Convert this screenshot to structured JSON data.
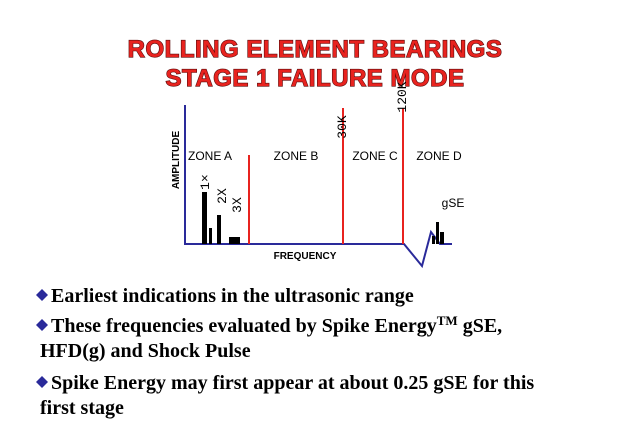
{
  "header": {
    "title_lines": [
      "ROLLING ELEMENT BEARINGS",
      "STAGE 1 FAILURE MODE"
    ]
  },
  "diagram": {
    "y_axis_label": "AMPLITUDE",
    "x_axis_label": "FREQUENCY",
    "zones": [
      "ZONE A",
      "ZONE B",
      "ZONE C",
      "ZONE D"
    ],
    "boundaries": [
      "30K",
      "120K"
    ],
    "harmonics": [
      "1×",
      "2X",
      "3X"
    ],
    "gse_label": "gSE"
  },
  "bullets": [
    {
      "lines": [
        [
          "Earliest indications in the ultrasonic range"
        ]
      ]
    },
    {
      "lines": [
        [
          "These frequencies evaluated by Spike Energy",
          "TM",
          " gSE,"
        ],
        [
          "HFD(g) and Shock Pulse"
        ]
      ]
    },
    {
      "lines": [
        [
          "Spike Energy may first appear at about 0.25 gSE for this"
        ],
        [
          "first stage"
        ]
      ]
    }
  ]
}
